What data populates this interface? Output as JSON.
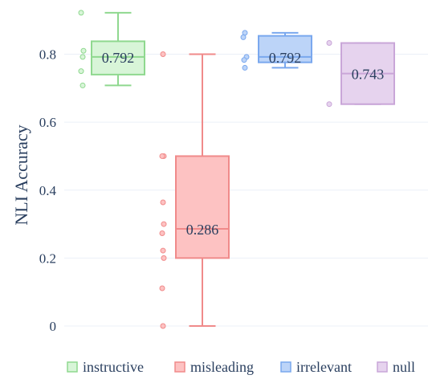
{
  "chart_data": {
    "type": "box",
    "title": "",
    "xlabel": "",
    "ylabel": "NLI Accuracy",
    "ylim": [
      -0.05,
      0.95
    ],
    "yticks": [
      {
        "value": 0,
        "label": "0"
      },
      {
        "value": 0.2,
        "label": "0.2"
      },
      {
        "value": 0.4,
        "label": "0.4"
      },
      {
        "value": 0.6,
        "label": "0.6"
      },
      {
        "value": 0.8,
        "label": "0.8"
      }
    ],
    "grid": true,
    "legend_position": "bottom",
    "series": [
      {
        "name": "instructive",
        "color": "#8fd88f",
        "fill": "#d8f5d8",
        "median_label": "0.792",
        "q1": 0.74,
        "median": 0.792,
        "q3": 0.838,
        "whisker_low": 0.708,
        "whisker_high": 0.922,
        "points": [
          0.922,
          0.81,
          0.792,
          0.75,
          0.708
        ]
      },
      {
        "name": "misleading",
        "color": "#f08a8a",
        "fill": "#fdc2c2",
        "median_label": "0.286",
        "q1": 0.2,
        "median": 0.286,
        "q3": 0.5,
        "whisker_low": 0.0,
        "whisker_high": 0.8,
        "points": [
          0.8,
          0.5,
          0.5,
          0.364,
          0.3,
          0.273,
          0.222,
          0.2,
          0.111,
          0.0
        ]
      },
      {
        "name": "irrelevant",
        "color": "#7aa8ee",
        "fill": "#bcd4f8",
        "median_label": "0.792",
        "q1": 0.776,
        "median": 0.792,
        "q3": 0.854,
        "whisker_low": 0.76,
        "whisker_high": 0.863,
        "points": [
          0.863,
          0.85,
          0.792,
          0.783,
          0.76
        ]
      },
      {
        "name": "null",
        "color": "#c9a6d8",
        "fill": "#e6d3ee",
        "median_label": "0.743",
        "q1": 0.653,
        "median": 0.743,
        "q3": 0.833,
        "whisker_low": 0.653,
        "whisker_high": 0.833,
        "points": [
          0.833,
          0.653
        ]
      }
    ]
  }
}
